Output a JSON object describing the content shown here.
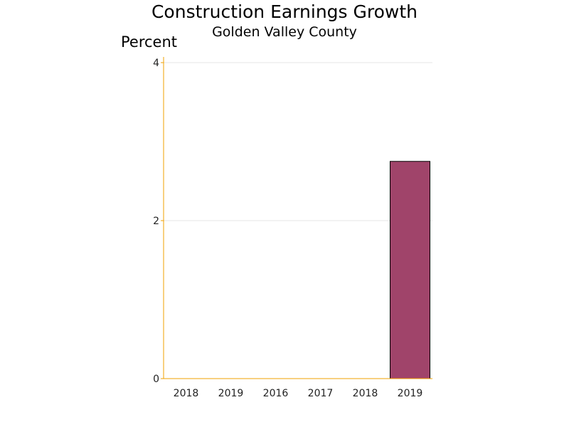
{
  "chart_data": {
    "type": "bar",
    "title": "Construction Earnings Growth",
    "subtitle": "Golden Valley County",
    "ylabel": "Percent",
    "xlabel": "",
    "categories": [
      "2018",
      "2019",
      "2016",
      "2017",
      "2018",
      "2019"
    ],
    "values": [
      0,
      0,
      0,
      0,
      0,
      2.75
    ],
    "ylim": [
      0,
      4
    ],
    "yticks": [
      0,
      2,
      4
    ],
    "grid": true,
    "bar_color": "#a0446a",
    "bar_outline_color": "#000000",
    "axis_color": "#f0a000",
    "grid_color": "#e4e4e4"
  }
}
